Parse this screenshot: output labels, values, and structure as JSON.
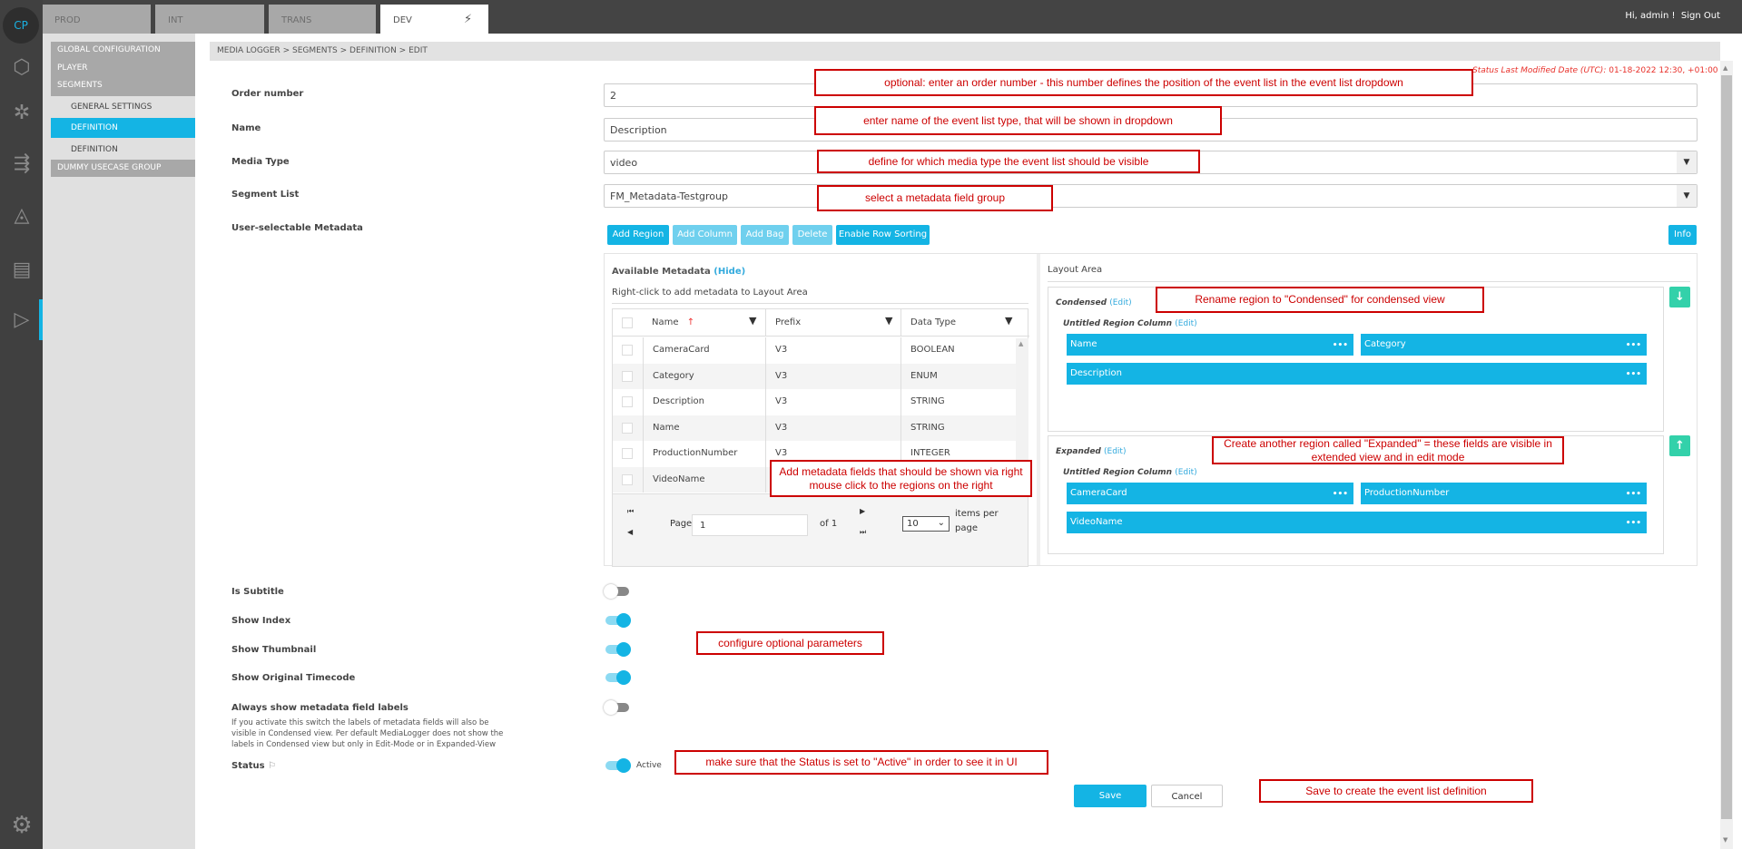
{
  "topbar": {
    "tabs": [
      {
        "label": "PROD"
      },
      {
        "label": "INT"
      },
      {
        "label": "TRANS"
      },
      {
        "label": "DEV",
        "active": true,
        "icon": "plug-icon"
      }
    ],
    "greeting": "Hi, admin !",
    "sign_out": "Sign Out"
  },
  "rail": {
    "logo": "CP",
    "icons": [
      "cubes-icon",
      "network-icon",
      "flow-icon",
      "cycle-icon",
      "media-cut-icon",
      "media-logger-icon",
      "gears-icon"
    ]
  },
  "nav": {
    "items": [
      {
        "label": "GLOBAL CONFIGURATION"
      },
      {
        "label": "PLAYER"
      },
      {
        "label": "SEGMENTS"
      },
      {
        "label": "GENERAL SETTINGS",
        "sub": true
      },
      {
        "label": "DEFINITION",
        "sub": true,
        "active": true
      },
      {
        "label": "DEFINITION",
        "sub": true
      },
      {
        "label": "DUMMY USECASE GROUP"
      }
    ]
  },
  "breadcrumb": "MEDIA LOGGER > SEGMENTS > DEFINITION > EDIT",
  "status_modified": {
    "label": "Status Last Modified Date (UTC):",
    "value": "01-18-2022 12:30, +01:00"
  },
  "form": {
    "order_number": {
      "label": "Order number",
      "value": "2"
    },
    "name": {
      "label": "Name",
      "value": "Description"
    },
    "media_type": {
      "label": "Media Type",
      "value": "video"
    },
    "segment_list": {
      "label": "Segment List",
      "value": "FM_Metadata-Testgroup"
    },
    "user_metadata_label": "User-selectable Metadata"
  },
  "toolbar": {
    "add_region": "Add Region",
    "add_column": "Add Column",
    "add_bag": "Add Bag",
    "delete": "Delete",
    "enable_row_sorting": "Enable Row Sorting",
    "info": "Info"
  },
  "available": {
    "title": "Available Metadata",
    "hide": "(Hide)",
    "hint": "Right-click to add metadata to Layout Area",
    "columns": [
      "Name",
      "Prefix",
      "Data Type"
    ],
    "rows": [
      [
        "CameraCard",
        "V3",
        "BOOLEAN"
      ],
      [
        "Category",
        "V3",
        "ENUM"
      ],
      [
        "Description",
        "V3",
        "STRING"
      ],
      [
        "Name",
        "V3",
        "STRING"
      ],
      [
        "ProductionNumber",
        "V3",
        "INTEGER"
      ],
      [
        "VideoName",
        "V3",
        ""
      ]
    ],
    "pager": {
      "page_label": "Page",
      "page": "1",
      "of": "of 1",
      "per_page": "10",
      "items_per": "items per",
      "page_word": "page"
    }
  },
  "layout": {
    "title": "Layout Area",
    "edit": "(Edit)",
    "column_title": "Untitled Region Column",
    "regions": [
      {
        "name": "Condensed",
        "fields": [
          "Name",
          "Category",
          "Description"
        ]
      },
      {
        "name": "Expanded",
        "fields": [
          "CameraCard",
          "ProductionNumber",
          "VideoName"
        ]
      }
    ]
  },
  "options": [
    {
      "label": "Is Subtitle",
      "on": false
    },
    {
      "label": "Show Index",
      "on": true
    },
    {
      "label": "Show Thumbnail",
      "on": true
    },
    {
      "label": "Show Original Timecode",
      "on": true
    },
    {
      "label": "Always show metadata field labels",
      "on": false
    }
  ],
  "labels_help": "If you activate this switch the labels of metadata fields will also be visible in Condensed view. Per default MediaLogger does not show the labels in Condensed view but only in Edit-Mode or in Expanded-View",
  "status": {
    "label": "Status",
    "value": "Active",
    "on": true
  },
  "actions": {
    "save": "Save",
    "cancel": "Cancel"
  },
  "annotations": [
    "optional: enter an order number - this number defines the position of the event list in the event list dropdown",
    "enter name of the event list type, that will be shown in dropdown",
    "define for which media type the event list should be visible",
    "select a metadata field group",
    "Add metadata fields that should be shown via right mouse click to the regions on the right",
    "Rename region to \"Condensed\" for condensed view",
    "Create another region called \"Expanded\" = these fields are visible in extended view and in edit mode",
    "configure optional parameters",
    "make sure that the Status is set to \"Active\" in order to see it in UI",
    "Save to create the event list definition"
  ],
  "colors": {
    "accent": "#14b4e4",
    "annotation": "#cc0000",
    "mover": "#33d1aa"
  }
}
